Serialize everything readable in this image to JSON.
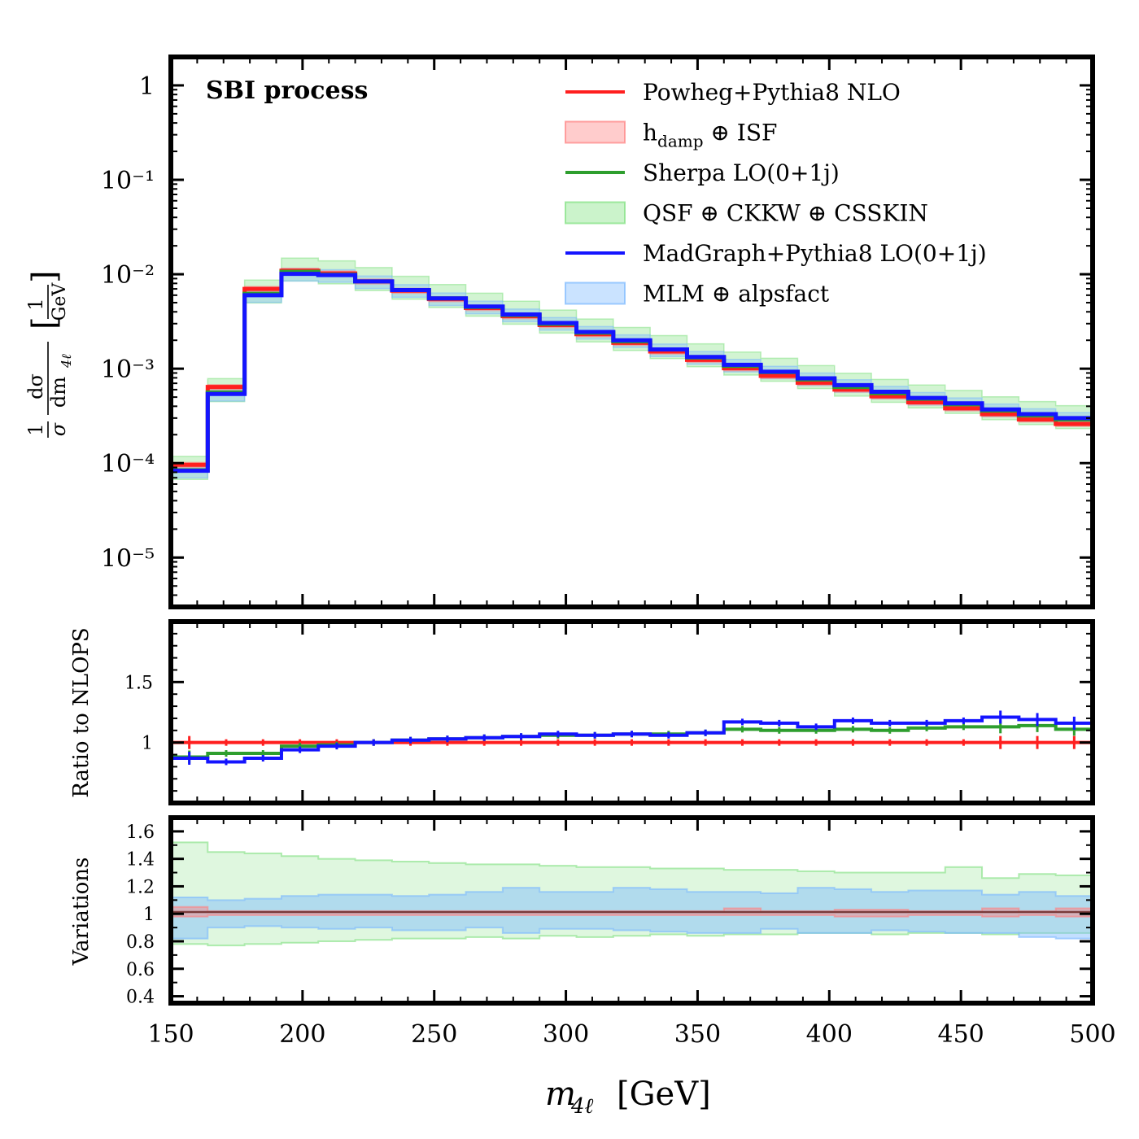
{
  "chart_data": [
    {
      "panel": "main",
      "type": "line",
      "style": "step",
      "annotation": "SBI process",
      "yscale": "log",
      "ylabel": "1/σ dσ/dm4ℓ [1/GeV]",
      "ylim": [
        3e-06,
        2
      ],
      "xlim": [
        150,
        500
      ],
      "edges": [
        150,
        164,
        178,
        192,
        206,
        220,
        234,
        248,
        262,
        276,
        290,
        304,
        318,
        332,
        346,
        360,
        374,
        388,
        402,
        416,
        430,
        444,
        458,
        472,
        486,
        500
      ],
      "series": [
        {
          "name": "Powheg+Pythia8 NLO",
          "color": "#ff1f1f",
          "values": [
            9.6e-05,
            0.00064,
            0.007,
            0.0109,
            0.0102,
            0.0084,
            0.0067,
            0.00545,
            0.0044,
            0.0036,
            0.0029,
            0.00232,
            0.00188,
            0.00152,
            0.00124,
            0.00101,
            0.00084,
            0.00071,
            0.0006,
            0.00051,
            0.00044,
            0.00038,
            0.00033,
            0.00029,
            0.00026,
            0.00023
          ]
        },
        {
          "name": "Sherpa LO(0+1j)",
          "color": "#2e9e2e",
          "values": [
            8.4e-05,
            0.00056,
            0.0062,
            0.0106,
            0.0099,
            0.0084,
            0.0068,
            0.00555,
            0.0045,
            0.0037,
            0.00298,
            0.0024,
            0.00195,
            0.0016,
            0.00131,
            0.00107,
            0.00092,
            0.00077,
            0.00064,
            0.00055,
            0.00048,
            0.00042,
            0.00036,
            0.00032,
            0.00029,
            0.000255
          ]
        },
        {
          "name": "MadGraph+Pythia8 LO(0+1j)",
          "color": "#1414ff",
          "values": [
            8.3e-05,
            0.00054,
            0.006,
            0.0101,
            0.0098,
            0.0084,
            0.0068,
            0.00555,
            0.00455,
            0.00375,
            0.00305,
            0.00245,
            0.002,
            0.0016,
            0.00133,
            0.0011,
            0.00093,
            0.00079,
            0.00067,
            0.00057,
            0.00049,
            0.00043,
            0.00037,
            0.00033,
            0.0003,
            0.00026
          ]
        }
      ],
      "bands": [
        {
          "name": "hdamp ⊕ ISF",
          "color": "#ff8080",
          "lower_ratio": 0.94,
          "upper_ratio": 1.06
        },
        {
          "name": "QSF ⊕ CKKW ⊕ CSSKIN",
          "color": "#7ee07e",
          "lower_ratio": 0.8,
          "upper_ratio": 1.4
        },
        {
          "name": "MLM ⊕ alpsfact",
          "color": "#7ab8ff",
          "lower_ratio": 0.84,
          "upper_ratio": 1.14
        }
      ],
      "yticks": [
        "1",
        "10⁻¹",
        "10⁻²",
        "10⁻³",
        "10⁻⁴",
        "10⁻⁵"
      ]
    },
    {
      "panel": "ratio",
      "type": "line",
      "style": "step",
      "ylabel": "Ratio to NLOPS",
      "ylim": [
        0.5,
        2.0
      ],
      "yticks": [
        "1",
        "1.5"
      ],
      "series": [
        {
          "name": "Powheg+Pythia8 NLO",
          "color": "#ff1f1f",
          "values": [
            1.0,
            1.0,
            1.0,
            1.0,
            1.0,
            1.0,
            1.0,
            1.0,
            1.0,
            1.0,
            1.0,
            1.0,
            1.0,
            1.0,
            1.0,
            1.0,
            1.0,
            1.0,
            1.0,
            1.0,
            1.0,
            1.0,
            1.0,
            1.0,
            1.0
          ]
        },
        {
          "name": "Sherpa LO(0+1j)",
          "color": "#2e9e2e",
          "values": [
            0.88,
            0.91,
            0.91,
            0.97,
            0.98,
            1.0,
            1.02,
            1.03,
            1.04,
            1.05,
            1.06,
            1.06,
            1.07,
            1.07,
            1.08,
            1.11,
            1.1,
            1.1,
            1.11,
            1.1,
            1.12,
            1.13,
            1.13,
            1.14,
            1.11
          ]
        },
        {
          "name": "MadGraph+Pythia8 LO(0+1j)",
          "color": "#1414ff",
          "values": [
            0.87,
            0.84,
            0.87,
            0.94,
            0.97,
            1.0,
            1.02,
            1.03,
            1.04,
            1.05,
            1.07,
            1.06,
            1.07,
            1.06,
            1.08,
            1.17,
            1.16,
            1.13,
            1.18,
            1.16,
            1.16,
            1.18,
            1.21,
            1.19,
            1.16
          ]
        }
      ]
    },
    {
      "panel": "variations",
      "type": "area",
      "style": "step",
      "xlabel": "m4ℓ [GeV]",
      "ylabel": "Variations",
      "ylim": [
        0.35,
        1.7
      ],
      "xlim": [
        150,
        500
      ],
      "yticks": [
        "0.4",
        "0.6",
        "0.8",
        "1",
        "1.2",
        "1.4",
        "1.6"
      ],
      "xticks": [
        "150",
        "200",
        "250",
        "300",
        "350",
        "400",
        "450",
        "500"
      ],
      "bands": [
        {
          "name": "QSF ⊕ CKKW ⊕ CSSKIN",
          "color": "#7ee07e",
          "lower": [
            0.78,
            0.77,
            0.78,
            0.79,
            0.8,
            0.81,
            0.82,
            0.82,
            0.83,
            0.82,
            0.84,
            0.83,
            0.84,
            0.85,
            0.84,
            0.85,
            0.85,
            0.86,
            0.86,
            0.85,
            0.86,
            0.86,
            0.85,
            0.86,
            0.86
          ],
          "upper": [
            1.52,
            1.45,
            1.44,
            1.42,
            1.4,
            1.39,
            1.38,
            1.37,
            1.36,
            1.36,
            1.35,
            1.34,
            1.34,
            1.33,
            1.33,
            1.32,
            1.32,
            1.31,
            1.3,
            1.3,
            1.3,
            1.34,
            1.26,
            1.29,
            1.28
          ]
        },
        {
          "name": "MLM ⊕ alpsfact",
          "color": "#7ab8ff",
          "lower": [
            0.82,
            0.9,
            0.91,
            0.9,
            0.89,
            0.9,
            0.88,
            0.88,
            0.9,
            0.86,
            0.89,
            0.89,
            0.88,
            0.87,
            0.86,
            0.86,
            0.89,
            0.86,
            0.86,
            0.88,
            0.87,
            0.86,
            0.86,
            0.83,
            0.82
          ],
          "upper": [
            1.12,
            1.1,
            1.11,
            1.13,
            1.14,
            1.14,
            1.13,
            1.14,
            1.16,
            1.19,
            1.16,
            1.16,
            1.19,
            1.18,
            1.16,
            1.16,
            1.15,
            1.19,
            1.18,
            1.16,
            1.17,
            1.17,
            1.14,
            1.16,
            1.13
          ]
        },
        {
          "name": "hdamp ⊕ ISF",
          "color": "#ff8080",
          "lower": [
            0.98,
            0.99,
            0.99,
            0.99,
            0.99,
            0.99,
            0.99,
            0.99,
            0.99,
            0.99,
            0.99,
            0.99,
            0.99,
            0.99,
            0.99,
            0.99,
            0.99,
            0.99,
            0.98,
            0.98,
            0.99,
            0.99,
            0.98,
            0.99,
            0.98
          ],
          "upper": [
            1.05,
            1.02,
            1.02,
            1.02,
            1.02,
            1.02,
            1.02,
            1.02,
            1.02,
            1.02,
            1.02,
            1.02,
            1.02,
            1.02,
            1.02,
            1.04,
            1.02,
            1.02,
            1.03,
            1.03,
            1.02,
            1.02,
            1.04,
            1.02,
            1.04
          ]
        }
      ]
    }
  ],
  "legend": [
    {
      "label": "Powheg+Pythia8 NLO",
      "kind": "line",
      "color": "#ff1f1f"
    },
    {
      "label": "h",
      "sub": "damp",
      "rest": " ⊕ ISF",
      "kind": "band",
      "color": "#ff8080"
    },
    {
      "label": "Sherpa LO(0+1j)",
      "kind": "line",
      "color": "#2e9e2e"
    },
    {
      "label": "QSF ⊕ CKKW ⊕ CSSKIN",
      "kind": "band",
      "color": "#7ee07e"
    },
    {
      "label": "MadGraph+Pythia8 LO(0+1j)",
      "kind": "line",
      "color": "#1414ff"
    },
    {
      "label": "MLM ⊕ alpsfact",
      "kind": "band",
      "color": "#7ab8ff"
    }
  ],
  "labels": {
    "annotation": "SBI process",
    "main_ylabel_frac_num": "1",
    "main_ylabel_frac_den": "σ",
    "main_ylabel_d_num": "dσ",
    "main_ylabel_d_den": "dm",
    "main_ylabel_sub": "4ℓ",
    "main_ylabel_unit_num": "1",
    "main_ylabel_unit_den": "GeV",
    "ratio_ylabel": "Ratio to NLOPS",
    "var_ylabel": "Variations",
    "xlabel_m": "m",
    "xlabel_sub": "4ℓ",
    "xlabel_unit": "[GeV]"
  }
}
